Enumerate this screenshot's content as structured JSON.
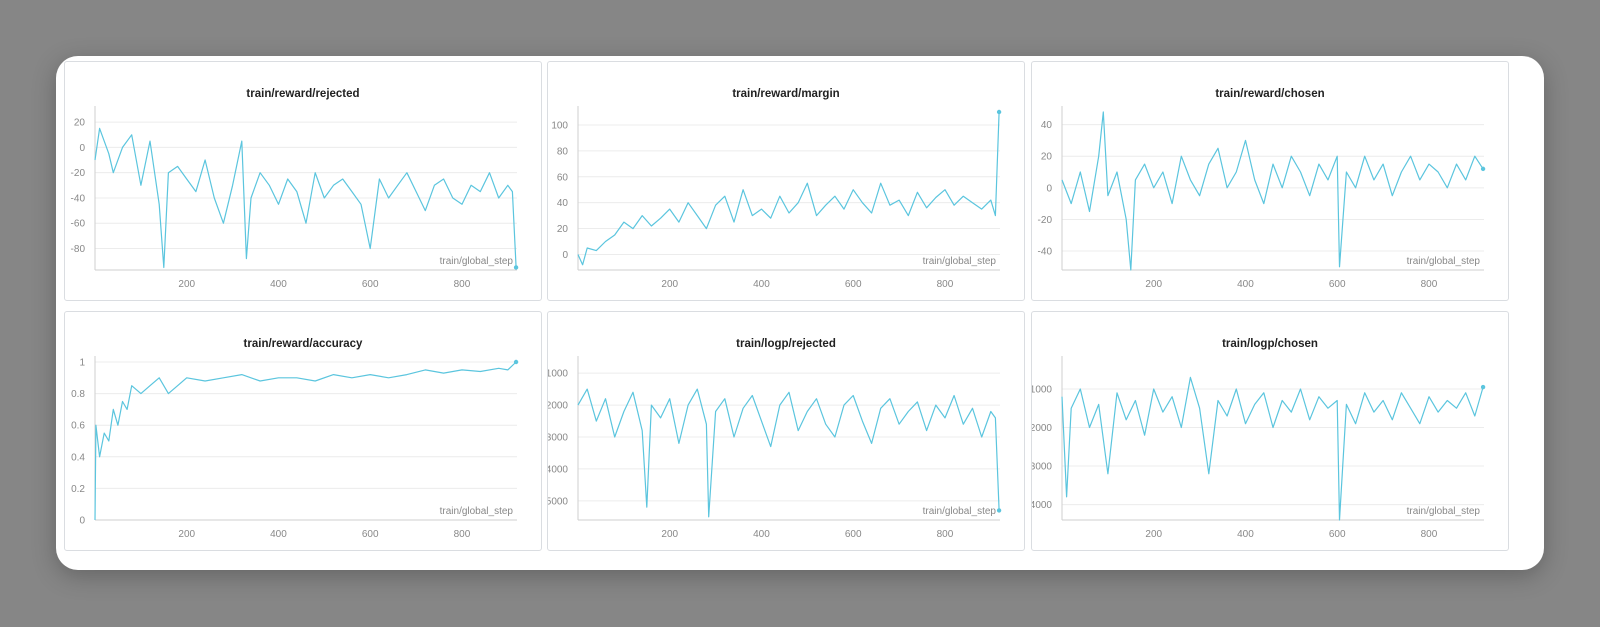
{
  "chart_data": [
    {
      "type": "line",
      "title": "train/reward/rejected",
      "xlabel": "train/global_step",
      "xlim": [
        0,
        920
      ],
      "ylim": [
        -97,
        28
      ],
      "yticks": [
        "20",
        "0",
        "-20",
        "-40",
        "-60",
        "-80"
      ],
      "ytick_values": [
        20,
        0,
        -20,
        -40,
        -60,
        -80
      ],
      "xticks": [
        "200",
        "400",
        "600",
        "800"
      ],
      "color": "#5bc5de",
      "grid": true,
      "series": [
        {
          "x": [
            0,
            10,
            20,
            30,
            40,
            60,
            80,
            100,
            120,
            140,
            150,
            160,
            180,
            200,
            220,
            240,
            260,
            280,
            300,
            320,
            330,
            340,
            360,
            380,
            400,
            420,
            440,
            460,
            480,
            500,
            520,
            540,
            560,
            580,
            600,
            620,
            640,
            660,
            680,
            700,
            720,
            740,
            760,
            780,
            800,
            820,
            840,
            860,
            880,
            900,
            910,
            918
          ],
          "y": [
            -10,
            15,
            5,
            -5,
            -20,
            0,
            10,
            -30,
            5,
            -45,
            -95,
            -20,
            -15,
            -25,
            -35,
            -10,
            -40,
            -60,
            -30,
            5,
            -88,
            -40,
            -20,
            -30,
            -45,
            -25,
            -35,
            -60,
            -20,
            -40,
            -30,
            -25,
            -35,
            -45,
            -80,
            -25,
            -40,
            -30,
            -20,
            -35,
            -50,
            -30,
            -25,
            -40,
            -45,
            -30,
            -35,
            -20,
            -40,
            -30,
            -35,
            -95
          ]
        }
      ]
    },
    {
      "type": "line",
      "title": "train/reward/margin",
      "xlabel": "train/global_step",
      "xlim": [
        0,
        920
      ],
      "ylim": [
        -12,
        110
      ],
      "yticks": [
        "100",
        "80",
        "60",
        "40",
        "20",
        "0"
      ],
      "ytick_values": [
        100,
        80,
        60,
        40,
        20,
        0
      ],
      "xticks": [
        "200",
        "400",
        "600",
        "800"
      ],
      "color": "#5bc5de",
      "grid": true,
      "series": [
        {
          "x": [
            0,
            10,
            20,
            40,
            60,
            80,
            100,
            120,
            140,
            160,
            180,
            200,
            220,
            240,
            260,
            280,
            300,
            320,
            340,
            360,
            380,
            400,
            420,
            440,
            460,
            480,
            500,
            520,
            540,
            560,
            580,
            600,
            620,
            640,
            660,
            680,
            700,
            720,
            740,
            760,
            780,
            800,
            820,
            840,
            860,
            880,
            900,
            910,
            918
          ],
          "y": [
            0,
            -8,
            5,
            3,
            10,
            15,
            25,
            20,
            30,
            22,
            28,
            35,
            25,
            40,
            30,
            20,
            38,
            45,
            25,
            50,
            30,
            35,
            28,
            45,
            32,
            40,
            55,
            30,
            38,
            45,
            35,
            50,
            40,
            32,
            55,
            38,
            42,
            30,
            48,
            36,
            44,
            50,
            38,
            45,
            40,
            35,
            42,
            30,
            110
          ]
        }
      ]
    },
    {
      "type": "line",
      "title": "train/reward/chosen",
      "xlabel": "train/global_step",
      "xlim": [
        0,
        920
      ],
      "ylim": [
        -52,
        48
      ],
      "yticks": [
        "40",
        "20",
        "0",
        "-20",
        "-40"
      ],
      "ytick_values": [
        40,
        20,
        0,
        -20,
        -40
      ],
      "xticks": [
        "200",
        "400",
        "600",
        "800"
      ],
      "color": "#5bc5de",
      "grid": true,
      "series": [
        {
          "x": [
            0,
            20,
            40,
            60,
            80,
            90,
            100,
            120,
            140,
            150,
            160,
            180,
            200,
            220,
            240,
            260,
            280,
            300,
            320,
            340,
            360,
            380,
            400,
            420,
            440,
            460,
            480,
            500,
            520,
            540,
            560,
            580,
            600,
            605,
            620,
            640,
            660,
            680,
            700,
            720,
            740,
            760,
            780,
            800,
            820,
            840,
            860,
            880,
            900,
            918
          ],
          "y": [
            5,
            -10,
            10,
            -15,
            20,
            48,
            -5,
            10,
            -20,
            -52,
            5,
            15,
            0,
            10,
            -10,
            20,
            5,
            -5,
            15,
            25,
            0,
            10,
            30,
            5,
            -10,
            15,
            0,
            20,
            10,
            -5,
            15,
            5,
            20,
            -50,
            10,
            0,
            20,
            5,
            15,
            -5,
            10,
            20,
            5,
            15,
            10,
            0,
            15,
            5,
            20,
            12
          ]
        }
      ]
    },
    {
      "type": "line",
      "title": "train/reward/accuracy",
      "xlabel": "train/global_step",
      "xlim": [
        0,
        920
      ],
      "ylim": [
        0,
        1
      ],
      "yticks": [
        "1",
        "0.8",
        "0.6",
        "0.4",
        "0.2",
        "0"
      ],
      "ytick_values": [
        1,
        0.8,
        0.6,
        0.4,
        0.2,
        0
      ],
      "xticks": [
        "200",
        "400",
        "600",
        "800"
      ],
      "color": "#5bc5de",
      "grid": true,
      "series": [
        {
          "x": [
            0,
            2,
            10,
            20,
            30,
            40,
            50,
            60,
            70,
            80,
            100,
            120,
            140,
            160,
            180,
            200,
            240,
            280,
            320,
            360,
            400,
            440,
            480,
            520,
            560,
            600,
            640,
            680,
            720,
            760,
            800,
            840,
            880,
            900,
            918
          ],
          "y": [
            0,
            0.6,
            0.4,
            0.55,
            0.5,
            0.7,
            0.6,
            0.75,
            0.7,
            0.85,
            0.8,
            0.85,
            0.9,
            0.8,
            0.85,
            0.9,
            0.88,
            0.9,
            0.92,
            0.88,
            0.9,
            0.9,
            0.88,
            0.92,
            0.9,
            0.92,
            0.9,
            0.92,
            0.95,
            0.93,
            0.95,
            0.94,
            0.96,
            0.95,
            1
          ]
        }
      ]
    },
    {
      "type": "line",
      "title": "train/logp/rejected",
      "xlabel": "train/global_step",
      "xlim": [
        0,
        920
      ],
      "ylim": [
        -5600,
        -650
      ],
      "yticks": [
        "-1000",
        "-2000",
        "-3000",
        "-4000",
        "-5000"
      ],
      "ytick_values": [
        -1000,
        -2000,
        -3000,
        -4000,
        -5000
      ],
      "xticks": [
        "200",
        "400",
        "600",
        "800"
      ],
      "color": "#5bc5de",
      "grid": true,
      "series": [
        {
          "x": [
            0,
            20,
            40,
            60,
            80,
            100,
            120,
            140,
            150,
            160,
            180,
            200,
            220,
            240,
            260,
            280,
            285,
            300,
            320,
            340,
            360,
            380,
            400,
            420,
            440,
            460,
            480,
            500,
            520,
            540,
            560,
            580,
            600,
            620,
            640,
            660,
            680,
            700,
            720,
            740,
            760,
            780,
            800,
            820,
            840,
            860,
            880,
            900,
            910,
            918
          ],
          "y": [
            -2000,
            -1500,
            -2500,
            -1800,
            -3000,
            -2200,
            -1600,
            -2800,
            -5200,
            -2000,
            -2400,
            -1800,
            -3200,
            -2000,
            -1500,
            -2600,
            -5500,
            -2200,
            -1800,
            -3000,
            -2100,
            -1700,
            -2500,
            -3300,
            -2000,
            -1600,
            -2800,
            -2200,
            -1800,
            -2600,
            -3000,
            -2000,
            -1700,
            -2500,
            -3200,
            -2100,
            -1800,
            -2600,
            -2200,
            -1900,
            -2800,
            -2000,
            -2400,
            -1700,
            -2600,
            -2100,
            -3000,
            -2200,
            -2400,
            -5300
          ]
        }
      ]
    },
    {
      "type": "line",
      "title": "train/logp/chosen",
      "xlabel": "train/global_step",
      "xlim": [
        0,
        920
      ],
      "ylim": [
        -4400,
        -300
      ],
      "yticks": [
        "-1000",
        "-2000",
        "-3000",
        "-4000"
      ],
      "ytick_values": [
        -1000,
        -2000,
        -3000,
        -4000
      ],
      "xticks": [
        "200",
        "400",
        "600",
        "800"
      ],
      "color": "#5bc5de",
      "grid": true,
      "series": [
        {
          "x": [
            0,
            10,
            20,
            40,
            60,
            80,
            100,
            120,
            140,
            160,
            180,
            200,
            220,
            240,
            260,
            280,
            300,
            320,
            340,
            360,
            380,
            400,
            420,
            440,
            460,
            480,
            500,
            520,
            540,
            560,
            580,
            600,
            605,
            620,
            640,
            660,
            680,
            700,
            720,
            740,
            760,
            780,
            800,
            820,
            840,
            860,
            880,
            900,
            918
          ],
          "y": [
            -1200,
            -3800,
            -1500,
            -1000,
            -2000,
            -1400,
            -3200,
            -1100,
            -1800,
            -1300,
            -2200,
            -1000,
            -1600,
            -1200,
            -2000,
            -700,
            -1500,
            -3200,
            -1300,
            -1700,
            -1000,
            -1900,
            -1400,
            -1100,
            -2000,
            -1300,
            -1600,
            -1000,
            -1800,
            -1200,
            -1500,
            -1300,
            -4400,
            -1400,
            -1900,
            -1100,
            -1600,
            -1300,
            -1800,
            -1100,
            -1500,
            -1900,
            -1200,
            -1600,
            -1300,
            -1500,
            -1100,
            -1700,
            -950
          ]
        }
      ]
    }
  ]
}
